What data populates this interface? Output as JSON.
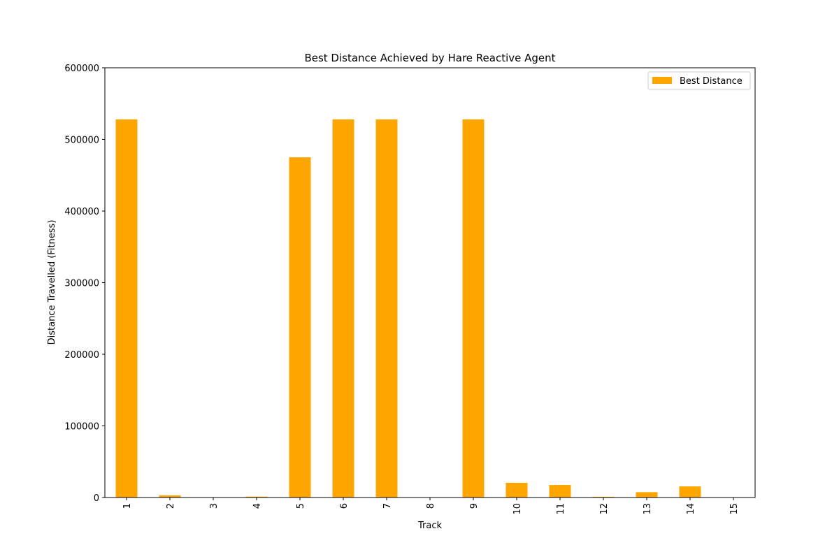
{
  "chart_data": {
    "type": "bar",
    "title": "Best Distance Achieved by Hare Reactive Agent",
    "xlabel": "Track",
    "ylabel": "Distance Travelled (Fitness)",
    "categories": [
      "1",
      "2",
      "3",
      "4",
      "5",
      "6",
      "7",
      "8",
      "9",
      "10",
      "11",
      "12",
      "13",
      "14",
      "15"
    ],
    "series": [
      {
        "name": "Best Distance",
        "color": "#ffa500",
        "values": [
          528000,
          3000,
          0,
          1200,
          475000,
          528000,
          528000,
          0,
          528000,
          20500,
          17500,
          1000,
          7500,
          15500,
          0
        ]
      }
    ],
    "ylim": [
      0,
      600000
    ],
    "yticks": [
      "0",
      "100000",
      "200000",
      "300000",
      "400000",
      "500000",
      "600000"
    ],
    "grid": false,
    "legend_position": "top-right",
    "x_tick_rotation": "vertical"
  }
}
